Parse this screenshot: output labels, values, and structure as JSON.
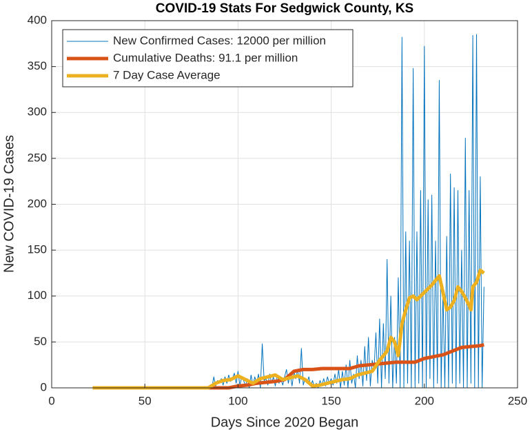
{
  "chart_data": {
    "type": "line",
    "title": "COVID-19 Stats For Sedgwick County, KS",
    "x_label": "Days Since 2020 Began",
    "y_label": "New COVID-19 Cases",
    "xlim": [
      0,
      250
    ],
    "xticks": [
      0,
      50,
      100,
      150,
      200,
      250
    ],
    "ylim": [
      0,
      400
    ],
    "yticks": [
      0,
      50,
      100,
      150,
      200,
      250,
      300,
      350,
      400
    ],
    "grid": true,
    "legend": "upper left",
    "series": [
      {
        "name": "New Confirmed Cases: 12000 per million",
        "color": "#0072BD",
        "width": 1,
        "x": [
          22,
          84,
          85,
          86,
          87,
          88,
          89,
          90,
          91,
          92,
          93,
          94,
          95,
          96,
          97,
          98,
          99,
          100,
          101,
          102,
          103,
          104,
          105,
          106,
          107,
          108,
          109,
          110,
          111,
          112,
          113,
          114,
          115,
          116,
          117,
          118,
          119,
          120,
          121,
          122,
          123,
          124,
          125,
          126,
          127,
          128,
          129,
          130,
          131,
          132,
          133,
          134,
          135,
          136,
          137,
          138,
          139,
          140,
          141,
          142,
          143,
          144,
          145,
          146,
          147,
          148,
          149,
          150,
          151,
          152,
          153,
          154,
          155,
          156,
          157,
          158,
          159,
          160,
          161,
          162,
          163,
          164,
          165,
          166,
          167,
          168,
          169,
          170,
          171,
          172,
          173,
          174,
          175,
          176,
          177,
          178,
          179,
          180,
          181,
          182,
          183,
          184,
          185,
          186,
          187,
          188,
          189,
          190,
          191,
          192,
          193,
          194,
          195,
          196,
          197,
          198,
          199,
          200,
          201,
          202,
          203,
          204,
          205,
          206,
          207,
          208,
          209,
          210,
          211,
          212,
          213,
          214,
          215,
          216,
          217,
          218,
          219,
          220,
          221,
          222,
          223,
          224,
          225,
          226,
          227,
          228,
          229,
          230,
          231,
          232
        ],
        "values": [
          0,
          0,
          3,
          0,
          12,
          2,
          8,
          5,
          10,
          3,
          12,
          5,
          14,
          7,
          10,
          16,
          5,
          18,
          3,
          12,
          8,
          2,
          10,
          0,
          14,
          3,
          12,
          5,
          15,
          0,
          48,
          8,
          10,
          3,
          15,
          5,
          12,
          2,
          14,
          5,
          10,
          3,
          12,
          20,
          5,
          15,
          2,
          18,
          10,
          20,
          5,
          43,
          3,
          10,
          5,
          12,
          2,
          8,
          0,
          5,
          0,
          8,
          3,
          10,
          2,
          12,
          5,
          10,
          3,
          15,
          5,
          20,
          0,
          18,
          3,
          25,
          0,
          30,
          5,
          15,
          0,
          35,
          10,
          30,
          2,
          45,
          8,
          55,
          2,
          30,
          20,
          60,
          5,
          75,
          0,
          70,
          10,
          140,
          5,
          100,
          0,
          55,
          5,
          120,
          0,
          382,
          0,
          170,
          5,
          160,
          0,
          348,
          0,
          170,
          5,
          215,
          0,
          372,
          0,
          205,
          10,
          210,
          0,
          160,
          5,
          335,
          0,
          105,
          0,
          165,
          0,
          233,
          5,
          218,
          0,
          215,
          5,
          150,
          0,
          272,
          0,
          215,
          5,
          384,
          0,
          385,
          0,
          230,
          0,
          110
        ]
      },
      {
        "name": "Cumulative Deaths: 91.1 per million",
        "color": "#D95319",
        "width": 5,
        "x": [
          22,
          84,
          95,
          100,
          105,
          110,
          115,
          120,
          125,
          130,
          135,
          140,
          145,
          150,
          160,
          165,
          170,
          175,
          180,
          185,
          190,
          195,
          200,
          205,
          210,
          215,
          220,
          225,
          230,
          232
        ],
        "values": [
          0,
          0,
          0,
          2,
          3,
          5,
          6,
          7,
          9,
          18,
          20,
          20,
          21,
          21,
          21,
          24,
          25,
          26,
          27,
          28,
          28,
          28,
          32,
          34,
          36,
          40,
          44,
          45,
          46,
          47
        ]
      },
      {
        "name": "7 Day Case Average",
        "color": "#EDB120",
        "width": 5,
        "x": [
          22,
          84,
          88,
          92,
          96,
          100,
          104,
          108,
          112,
          116,
          120,
          124,
          128,
          132,
          136,
          140,
          144,
          148,
          152,
          156,
          160,
          164,
          168,
          172,
          176,
          180,
          182,
          184,
          186,
          188,
          190,
          192,
          194,
          196,
          200,
          204,
          208,
          210,
          212,
          214,
          216,
          218,
          220,
          222,
          224,
          225,
          226,
          228,
          230,
          232
        ],
        "values": [
          0,
          0,
          5,
          8,
          9,
          13,
          9,
          5,
          10,
          12,
          14,
          9,
          11,
          13,
          9,
          2,
          3,
          5,
          7,
          9,
          10,
          14,
          16,
          18,
          30,
          40,
          55,
          50,
          35,
          70,
          85,
          98,
          100,
          96,
          104,
          112,
          122,
          104,
          85,
          88,
          95,
          110,
          105,
          98,
          90,
          85,
          110,
          115,
          128,
          125
        ]
      }
    ]
  }
}
